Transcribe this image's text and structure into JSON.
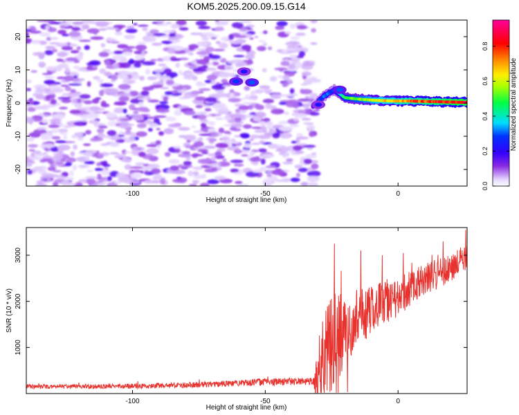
{
  "title": "KOM5.2025.200.09.15.G14",
  "colors": {
    "snr_line": "#e8322e",
    "axis": "#000000"
  },
  "chart_data": [
    {
      "type": "heatmap",
      "name": "spectrogram",
      "xlabel": "Height of straight line (km)",
      "ylabel": "Frequency (Hz)",
      "xlim": [
        -140,
        26
      ],
      "ylim": [
        -25,
        25
      ],
      "x_ticks": [
        -100,
        -50,
        0
      ],
      "x_tick_labels": [
        "-100",
        "-50",
        "0"
      ],
      "y_ticks": [
        -20,
        -10,
        0,
        10,
        20
      ],
      "y_tick_labels": [
        "-20",
        "-10",
        "0",
        "10",
        "20"
      ],
      "colorbar": {
        "label": "Normalized spectral amplitude",
        "range": [
          0,
          0.95
        ],
        "ticks": [
          0,
          0.2,
          0.4,
          0.6,
          0.8
        ],
        "tick_labels": [
          "0.0",
          "0.2",
          "0.4",
          "0.6",
          "0.8"
        ],
        "colormap": "rainbow (purple - blue - cyan - green - yellow - red - magenta)"
      },
      "features": {
        "noise_region": {
          "x_range": [
            -140,
            -31
          ],
          "y_range": [
            -25,
            25
          ],
          "amplitude": [
            0.0,
            0.15
          ]
        },
        "noise_gap": {
          "x_range": [
            -55,
            -45
          ],
          "y_range": [
            5,
            25
          ]
        },
        "tone_track": {
          "x": [
            -32,
            -28,
            -24,
            -20,
            -15,
            -10,
            -5,
            0,
            5,
            10,
            15,
            20,
            26
          ],
          "y": [
            -1,
            2,
            4,
            1.6,
            1.2,
            0.9,
            0.7,
            0.6,
            0.6,
            0.5,
            0.4,
            0.3,
            0.2
          ],
          "amplitude": [
            0.22,
            0.32,
            0.3,
            0.5,
            0.55,
            0.62,
            0.66,
            0.7,
            0.74,
            0.78,
            0.8,
            0.85,
            0.88
          ]
        },
        "hot_spots": [
          {
            "x": -61,
            "y": 6.5,
            "amplitude": 0.28
          },
          {
            "x": -55,
            "y": 6.2,
            "amplitude": 0.3
          },
          {
            "x": -58,
            "y": 9.5,
            "amplitude": 0.22
          },
          {
            "x": -22,
            "y": 4,
            "amplitude": 0.3
          },
          {
            "x": -30,
            "y": -0.5,
            "amplitude": 0.22
          }
        ]
      }
    },
    {
      "type": "line",
      "name": "snr",
      "xlabel": "Height of straight line (km)",
      "ylabel": "SNR (10 * v/v)",
      "xlim": [
        -140,
        26
      ],
      "ylim": [
        0,
        3600
      ],
      "x_ticks": [
        -100,
        -50,
        0
      ],
      "x_tick_labels": [
        "-100",
        "-50",
        "0"
      ],
      "y_ticks": [
        1000,
        2000,
        3000
      ],
      "y_tick_labels": [
        "1000",
        "2000",
        "3000"
      ],
      "series": [
        {
          "x": [
            -140,
            -120,
            -100,
            -80,
            -60,
            -50,
            -40,
            -32,
            -30,
            -28,
            -25,
            -22,
            -20,
            -15,
            -10,
            -5,
            0,
            5,
            10,
            15,
            20,
            23,
            26
          ],
          "baseline": [
            150,
            150,
            160,
            180,
            230,
            250,
            260,
            270,
            350,
            800,
            1000,
            1000,
            1300,
            1700,
            1800,
            1950,
            2050,
            2300,
            2500,
            2600,
            2700,
            2850,
            2900
          ],
          "noise_amplitude": [
            50,
            50,
            55,
            60,
            70,
            80,
            80,
            80,
            900,
            900,
            1200,
            1200,
            700,
            650,
            550,
            500,
            450,
            380,
            360,
            330,
            300,
            300,
            300
          ],
          "peaks": [
            {
              "x": -24,
              "y": 3250
            },
            {
              "x": -14,
              "y": 3100
            },
            {
              "x": -6,
              "y": 3000
            },
            {
              "x": 2,
              "y": 3050
            },
            {
              "x": 17,
              "y": 3300
            },
            {
              "x": 25.5,
              "y": 3550
            }
          ],
          "min_dips": [
            {
              "x": -19,
              "y": 30
            }
          ]
        }
      ]
    }
  ]
}
